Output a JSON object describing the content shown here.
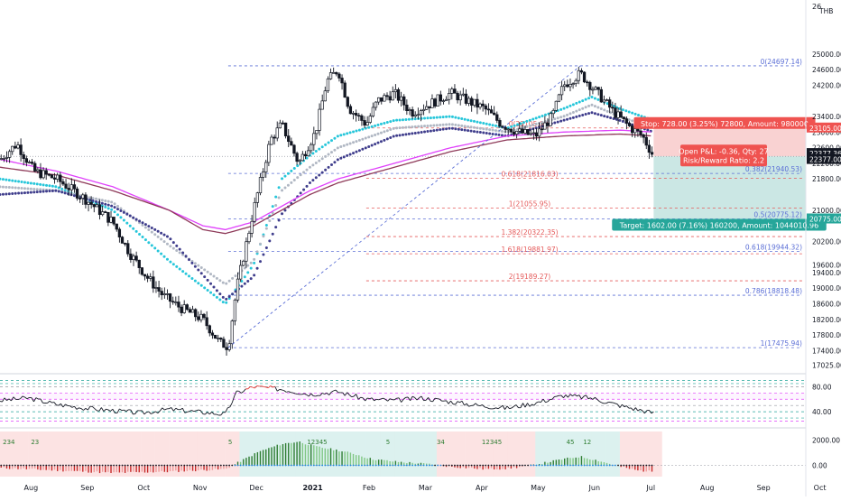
{
  "symbol_badge": "THB",
  "colors": {
    "up": "#26a69a",
    "down": "#ef5350",
    "candle": "#131722",
    "ema_cyan": "#26c6da",
    "ema_grey": "#b0b7c3",
    "ema_navy": "#3f3d8c",
    "ema_magenta": "#e040fb",
    "ema_maroon": "#8e3a59",
    "fib_blue": "#5b6fd6",
    "fib_red": "#e55b5b",
    "stop_zone": "#f9d2d2",
    "target_zone": "#cbe7e4",
    "price_last": "#131722",
    "rsi_line": "#131722",
    "rsi_upper": "#e53935"
  },
  "chart_data": {
    "type": "candlestick",
    "x_axis_labels": [
      "Aug",
      "Sep",
      "Oct",
      "Nov",
      "Dec",
      "2021",
      "Feb",
      "Mar",
      "Apr",
      "May",
      "Jun",
      "Jul",
      "Aug",
      "Sep",
      "Oct"
    ],
    "y_ticks": [
      17025,
      17400,
      17800,
      18200,
      18600,
      19000,
      19400,
      19600,
      20200,
      21000,
      21800,
      22200,
      22600,
      23000,
      23400,
      24200,
      24600,
      25000
    ],
    "y_tick_labels": [
      "17025.00",
      "17400.00",
      "17800.00",
      "18200.00",
      "18600.00",
      "19000.00",
      "19400.00",
      "19600.00",
      "20200.00",
      "21000.00",
      "21800.00",
      "22200.00",
      "22600.00",
      "23000.00",
      "23400.00",
      "24200.00",
      "24600.00",
      "25000.00"
    ],
    "top_axis_label": "26",
    "price_range": [
      16900,
      26200
    ],
    "price_path": [
      {
        "m": 0.0,
        "p": 22300
      },
      {
        "m": 0.3,
        "p": 22700
      },
      {
        "m": 0.6,
        "p": 22000
      },
      {
        "m": 1.0,
        "p": 21800
      },
      {
        "m": 1.5,
        "p": 21300
      },
      {
        "m": 2.0,
        "p": 20700
      },
      {
        "m": 2.3,
        "p": 19900
      },
      {
        "m": 2.6,
        "p": 19300
      },
      {
        "m": 2.9,
        "p": 18800
      },
      {
        "m": 3.2,
        "p": 18500
      },
      {
        "m": 3.6,
        "p": 18200
      },
      {
        "m": 3.9,
        "p": 17600
      },
      {
        "m": 4.05,
        "p": 17500
      },
      {
        "m": 4.2,
        "p": 19000
      },
      {
        "m": 4.5,
        "p": 21000
      },
      {
        "m": 4.8,
        "p": 22800
      },
      {
        "m": 5.0,
        "p": 23200
      },
      {
        "m": 5.3,
        "p": 22200
      },
      {
        "m": 5.6,
        "p": 23000
      },
      {
        "m": 5.8,
        "p": 24300
      },
      {
        "m": 6.0,
        "p": 24600
      },
      {
        "m": 6.2,
        "p": 23600
      },
      {
        "m": 6.5,
        "p": 23200
      },
      {
        "m": 6.7,
        "p": 23800
      },
      {
        "m": 7.0,
        "p": 24000
      },
      {
        "m": 7.3,
        "p": 23500
      },
      {
        "m": 7.6,
        "p": 23700
      },
      {
        "m": 8.0,
        "p": 24000
      },
      {
        "m": 8.3,
        "p": 23800
      },
      {
        "m": 8.6,
        "p": 23600
      },
      {
        "m": 8.9,
        "p": 23200
      },
      {
        "m": 9.2,
        "p": 23000
      },
      {
        "m": 9.5,
        "p": 22900
      },
      {
        "m": 9.8,
        "p": 23400
      },
      {
        "m": 10.0,
        "p": 24200
      },
      {
        "m": 10.3,
        "p": 24500
      },
      {
        "m": 10.6,
        "p": 24000
      },
      {
        "m": 10.9,
        "p": 23500
      },
      {
        "m": 11.2,
        "p": 23100
      },
      {
        "m": 11.4,
        "p": 22900
      },
      {
        "m": 11.6,
        "p": 22377
      }
    ],
    "moving_averages": [
      {
        "color_key": "ema_cyan",
        "style": "dots",
        "points": [
          [
            0,
            21800
          ],
          [
            1,
            21600
          ],
          [
            2,
            21000
          ],
          [
            3,
            19700
          ],
          [
            4,
            18600
          ],
          [
            4.5,
            19600
          ],
          [
            5,
            21800
          ],
          [
            5.5,
            22400
          ],
          [
            6,
            22900
          ],
          [
            7,
            23300
          ],
          [
            8,
            23400
          ],
          [
            9,
            23100
          ],
          [
            10,
            23600
          ],
          [
            10.5,
            23900
          ],
          [
            11,
            23600
          ],
          [
            11.6,
            23300
          ]
        ]
      },
      {
        "color_key": "ema_grey",
        "style": "dots",
        "points": [
          [
            0,
            21600
          ],
          [
            1,
            21500
          ],
          [
            2,
            21200
          ],
          [
            3,
            20100
          ],
          [
            4,
            19100
          ],
          [
            4.5,
            19700
          ],
          [
            5,
            21500
          ],
          [
            5.5,
            22100
          ],
          [
            6,
            22600
          ],
          [
            7,
            23100
          ],
          [
            8,
            23200
          ],
          [
            9,
            23000
          ],
          [
            10,
            23400
          ],
          [
            10.5,
            23700
          ],
          [
            11,
            23400
          ],
          [
            11.6,
            23100
          ]
        ]
      },
      {
        "color_key": "ema_navy",
        "style": "dots",
        "points": [
          [
            0,
            21400
          ],
          [
            1,
            21500
          ],
          [
            2,
            21100
          ],
          [
            3,
            20300
          ],
          [
            4,
            18700
          ],
          [
            4.5,
            19300
          ],
          [
            5,
            20900
          ],
          [
            5.5,
            21700
          ],
          [
            6,
            22300
          ],
          [
            7,
            22900
          ],
          [
            8,
            23100
          ],
          [
            9,
            22900
          ],
          [
            10,
            23300
          ],
          [
            10.5,
            23500
          ],
          [
            11,
            23300
          ],
          [
            11.6,
            23000
          ]
        ]
      },
      {
        "color_key": "ema_magenta",
        "style": "line",
        "points": [
          [
            0,
            22300
          ],
          [
            1,
            22000
          ],
          [
            2,
            21600
          ],
          [
            3,
            21000
          ],
          [
            3.6,
            20600
          ],
          [
            4,
            20500
          ],
          [
            4.5,
            20700
          ],
          [
            5,
            21100
          ],
          [
            5.5,
            21500
          ],
          [
            6,
            21800
          ],
          [
            7,
            22200
          ],
          [
            8,
            22600
          ],
          [
            9,
            22900
          ],
          [
            10,
            23000
          ],
          [
            11,
            23050
          ],
          [
            11.6,
            23000
          ]
        ]
      },
      {
        "color_key": "ema_maroon",
        "style": "line",
        "points": [
          [
            0,
            22100
          ],
          [
            1,
            21900
          ],
          [
            2,
            21500
          ],
          [
            3,
            21000
          ],
          [
            3.6,
            20500
          ],
          [
            4,
            20400
          ],
          [
            4.5,
            20600
          ],
          [
            5,
            21000
          ],
          [
            5.5,
            21400
          ],
          [
            6,
            21700
          ],
          [
            7,
            22100
          ],
          [
            8,
            22500
          ],
          [
            9,
            22800
          ],
          [
            10,
            22900
          ],
          [
            11,
            22950
          ],
          [
            11.6,
            22900
          ]
        ]
      }
    ],
    "trendline": {
      "from": {
        "m": 4.05,
        "p": 17475.94
      },
      "to": {
        "m": 10.3,
        "p": 24697.14
      }
    },
    "fib_blue": [
      {
        "text": "0(24697.14)",
        "p": 24697.14
      },
      {
        "text": "0.382(21940.53)",
        "p": 21940.53
      },
      {
        "text": "0.5(20775.12)",
        "p": 20775.12
      },
      {
        "text": "0.618(19944.32)",
        "p": 19944.32
      },
      {
        "text": "0.786(18818.48)",
        "p": 18818.48
      },
      {
        "text": "1(17475.94)",
        "p": 17475.94
      }
    ],
    "fib_red": [
      {
        "text": "0(23105.00)",
        "p": 23105.0
      },
      {
        "text": "0.618(21816.03)",
        "p": 21816.03
      },
      {
        "text": "1(21055.95)",
        "p": 21055.95
      },
      {
        "text": "1.382(20322.35)",
        "p": 20322.35
      },
      {
        "text": "1.618(19881.97)",
        "p": 19881.97
      },
      {
        "text": "2(19189.27)",
        "p": 19189.27
      }
    ],
    "position": {
      "entry": 22377.0,
      "stop": 23105.0,
      "target": 20775.0,
      "stop_label": "Stop: 728.00 (3.25%) 72800, Amount: 980000",
      "target_label": "Target: 1602.00 (7.16%) 160200, Amount: 1044010.96",
      "pnl_label": "Open P&L: -0.36, Qty: 27",
      "rr_label": "Risk/Reward Ratio: 2.2"
    },
    "price_tags": [
      {
        "text": "23105.00",
        "p": 23105.0,
        "color_key": "down"
      },
      {
        "text": "22377.36",
        "p": 22450.0,
        "color_key": "price_last"
      },
      {
        "text": "22377.00",
        "p": 22300.0,
        "color_key": "price_last"
      },
      {
        "text": "20775.00",
        "p": 20775.0,
        "color_key": "up"
      }
    ],
    "rsi": {
      "ticks": [
        80,
        40
      ],
      "tick_labels": [
        "80.00",
        "40.00"
      ],
      "range": [
        20,
        95
      ],
      "levels": [
        90,
        85,
        80,
        70,
        60,
        50,
        40,
        30,
        25
      ],
      "path": [
        [
          0,
          58
        ],
        [
          0.5,
          62
        ],
        [
          1,
          52
        ],
        [
          1.5,
          46
        ],
        [
          2,
          42
        ],
        [
          2.5,
          38
        ],
        [
          3,
          44
        ],
        [
          3.5,
          40
        ],
        [
          4,
          36
        ],
        [
          4.2,
          70
        ],
        [
          4.5,
          80
        ],
        [
          5,
          76
        ],
        [
          5.5,
          68
        ],
        [
          6,
          72
        ],
        [
          6.5,
          60
        ],
        [
          7,
          58
        ],
        [
          7.5,
          62
        ],
        [
          8,
          56
        ],
        [
          8.5,
          50
        ],
        [
          9,
          46
        ],
        [
          9.5,
          54
        ],
        [
          10,
          66
        ],
        [
          10.5,
          62
        ],
        [
          11,
          50
        ],
        [
          11.5,
          40
        ],
        [
          11.6,
          38
        ]
      ]
    },
    "momentum": {
      "ticks": [
        2000,
        0
      ],
      "tick_labels": [
        "2000.00",
        "0.00"
      ],
      "range": [
        -900,
        2700
      ],
      "bars": [
        [
          0,
          -200
        ],
        [
          0.5,
          -300
        ],
        [
          1,
          -400
        ],
        [
          1.5,
          -500
        ],
        [
          2,
          -600
        ],
        [
          2.5,
          -550
        ],
        [
          3,
          -500
        ],
        [
          3.5,
          -400
        ],
        [
          4,
          -300
        ],
        [
          4.3,
          400
        ],
        [
          4.6,
          1100
        ],
        [
          5,
          1700
        ],
        [
          5.3,
          1900
        ],
        [
          5.6,
          1500
        ],
        [
          6,
          1200
        ],
        [
          6.3,
          900
        ],
        [
          6.6,
          500
        ],
        [
          7,
          300
        ],
        [
          7.3,
          200
        ],
        [
          7.6,
          100
        ],
        [
          8,
          -100
        ],
        [
          8.3,
          -200
        ],
        [
          8.6,
          -300
        ],
        [
          9,
          -250
        ],
        [
          9.3,
          -100
        ],
        [
          9.6,
          150
        ],
        [
          10,
          500
        ],
        [
          10.3,
          700
        ],
        [
          10.6,
          400
        ],
        [
          11,
          -100
        ],
        [
          11.3,
          -400
        ],
        [
          11.6,
          -500
        ]
      ],
      "tags": [
        {
          "text": "234",
          "m": 0.05
        },
        {
          "text": "23",
          "m": 0.55
        },
        {
          "text": "5",
          "m": 4.05
        },
        {
          "text": "12345",
          "m": 5.45
        },
        {
          "text": "5",
          "m": 6.85
        },
        {
          "text": "34",
          "m": 7.75
        },
        {
          "text": "12345",
          "m": 8.55
        },
        {
          "text": "45",
          "m": 10.05
        },
        {
          "text": "12",
          "m": 10.35
        }
      ]
    }
  }
}
